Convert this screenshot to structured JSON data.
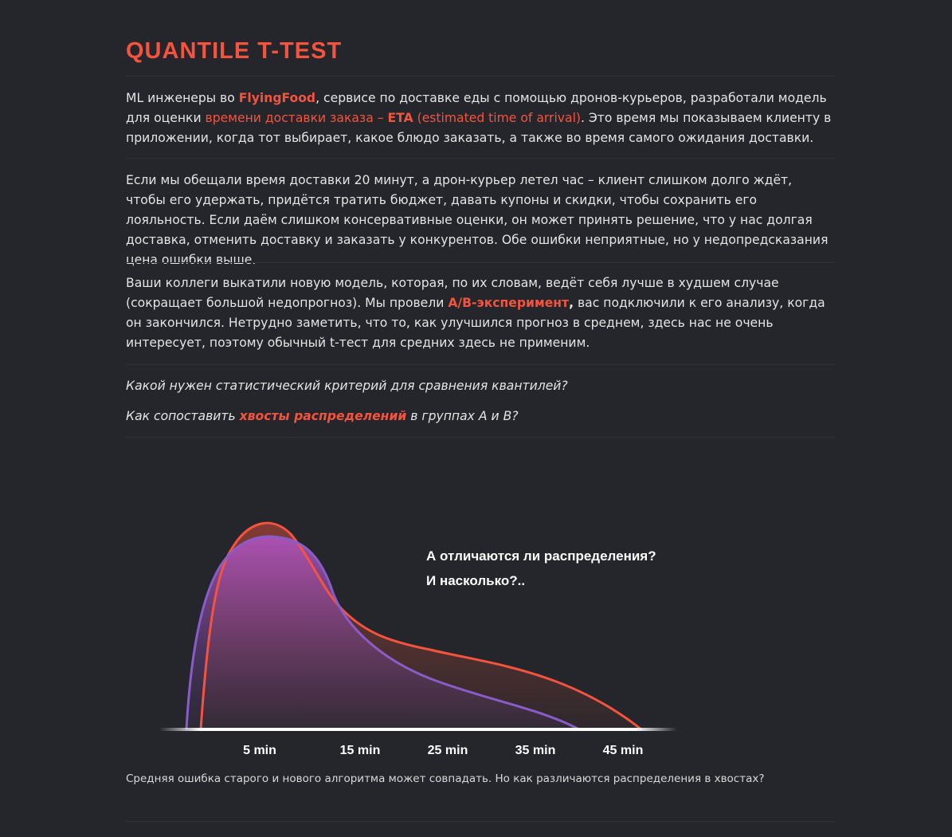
{
  "title": "QUANTILE T-TEST",
  "p1": {
    "t1": "ML инженеры во ",
    "brand": "FlyingFood",
    "t2": ", сервисе по доставке еды с помощью дронов-курьеров, разработали модель для оценки ",
    "link1": "времени доставки заказа – ",
    "link_eta": "ETA",
    "link2": " (estimated time of arrival)",
    "t3": ". Это время мы показываем клиенту в приложении, когда тот выбирает, какое блюдо заказать, а также во время самого ожидания доставки."
  },
  "p2": "Если мы обещали время доставки 20 минут, а дрон-курьер летел час – клиент слишком долго ждёт, чтобы его удержать, придётся тратить бюджет, давать купоны и скидки, чтобы сохранить его лояльность. Если даём слишком консервативные оценки, он может принять решение, что у нас долгая доставка, отменить доставку и заказать у конкурентов. Обе ошибки неприятные, но у недопредсказания цена ошибки выше.",
  "p3": {
    "t1": "Ваши коллеги выкатили новую модель, которая, по их словам, ведёт себя лучше в худшем случае (сокращает большой недопрогноз). Мы провели ",
    "link": "A/B-эксперимент",
    "comma": ",",
    "t2": " вас подключили к его анализу, когда он закончился. Нетрудно заметить, что то, как улучшился прогноз в среднем, здесь нас не очень интересует, поэтому обычный t-тест для средних здесь не применим."
  },
  "q1": "Какой нужен статистический критерий для сравнения квантилей?",
  "q2": {
    "t1": "Как сопоставить ",
    "bold": "хвосты распределений",
    "t2": " в группах A и B?"
  },
  "chart_data": {
    "type": "area",
    "annotation_line1": "А отличаются ли распределения?",
    "annotation_line2": "И насколько?..",
    "x_ticks": [
      "5 min",
      "15 min",
      "25 min",
      "35 min",
      "45 min"
    ],
    "series": [
      {
        "color": "#f4533e"
      },
      {
        "color": "#8a5cc8"
      }
    ]
  },
  "caption": "Средняя ошибка старого и нового алгоритма может совпадать. Но как различаются распределения в хвостах?"
}
